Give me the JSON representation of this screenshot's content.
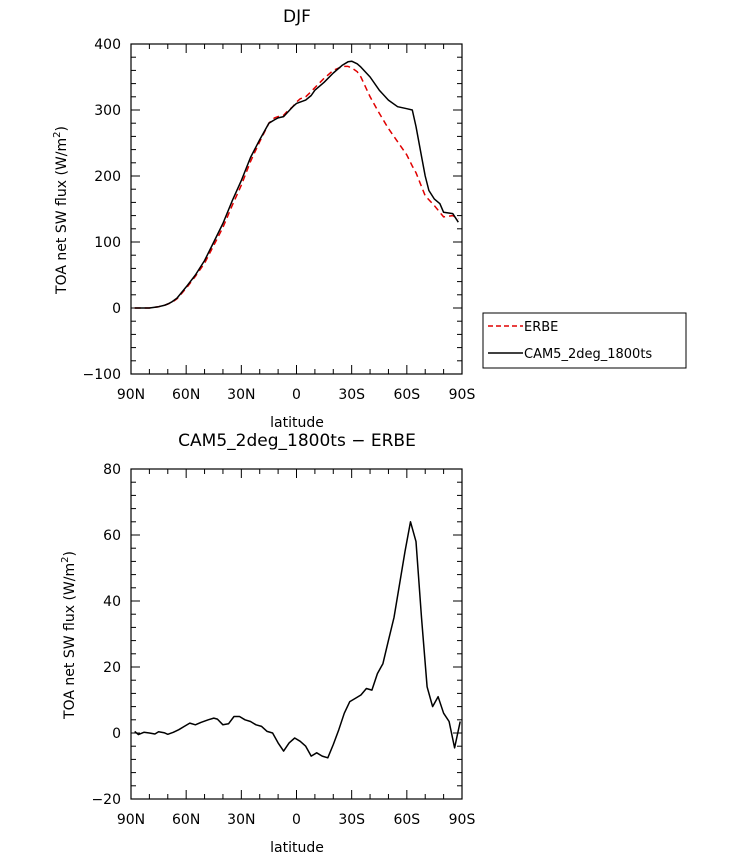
{
  "chart_data": [
    {
      "type": "line",
      "title": "DJF",
      "xlabel": "latitude",
      "ylabel": "TOA net SW flux (W/m²)",
      "ylabel_parts": {
        "main": "TOA net SW flux (W/m",
        "sup": "2",
        "close": ")"
      },
      "xlim": [
        -90,
        90
      ],
      "ylim": [
        -100,
        400
      ],
      "xticks": [
        -90,
        -60,
        -30,
        0,
        30,
        60,
        90
      ],
      "xtick_labels": [
        "90N",
        "60N",
        "30N",
        "0",
        "30S",
        "60S",
        "90S"
      ],
      "yticks": [
        -100,
        0,
        100,
        200,
        300,
        400
      ],
      "ytick_labels": [
        "−100",
        "0",
        "100",
        "200",
        "300",
        "400"
      ],
      "legend": "right",
      "series": [
        {
          "name": "ERBE",
          "color": "#e00000",
          "dash": "dashed",
          "x": [
            -88,
            -85,
            -80,
            -75,
            -72,
            -70,
            -68,
            -65,
            -60,
            -55,
            -50,
            -45,
            -40,
            -35,
            -30,
            -25,
            -20,
            -15,
            -12,
            -10,
            -7,
            -5,
            -2,
            0,
            2,
            5,
            8,
            10,
            15,
            20,
            25,
            28,
            30,
            33,
            35,
            40,
            45,
            50,
            55,
            60,
            63,
            65,
            70,
            75,
            80,
            85,
            88
          ],
          "y": [
            0,
            0,
            0,
            2,
            4,
            6,
            8,
            14,
            30,
            48,
            68,
            95,
            122,
            155,
            186,
            222,
            252,
            280,
            288,
            290,
            292,
            298,
            305,
            312,
            317,
            320,
            328,
            334,
            348,
            360,
            366,
            366,
            364,
            358,
            350,
            320,
            295,
            272,
            252,
            232,
            215,
            205,
            170,
            155,
            138,
            140,
            135
          ]
        },
        {
          "name": "CAM5_2deg_1800ts",
          "color": "#000000",
          "dash": "solid",
          "x": [
            -88,
            -85,
            -80,
            -75,
            -72,
            -70,
            -68,
            -65,
            -60,
            -55,
            -50,
            -45,
            -40,
            -35,
            -30,
            -25,
            -20,
            -15,
            -12,
            -10,
            -7,
            -5,
            -2,
            0,
            2,
            5,
            8,
            10,
            15,
            20,
            25,
            28,
            30,
            33,
            35,
            40,
            45,
            50,
            55,
            60,
            63,
            65,
            68,
            70,
            72,
            75,
            78,
            80,
            85,
            88
          ],
          "y": [
            0,
            0,
            0,
            2,
            4,
            6,
            9,
            15,
            32,
            50,
            72,
            100,
            128,
            162,
            193,
            228,
            255,
            280,
            285,
            288,
            290,
            296,
            305,
            310,
            312,
            315,
            322,
            330,
            342,
            356,
            368,
            373,
            374,
            370,
            365,
            350,
            330,
            315,
            305,
            302,
            300,
            275,
            230,
            200,
            178,
            165,
            158,
            145,
            143,
            130
          ]
        }
      ]
    },
    {
      "type": "line",
      "title": "CAM5_2deg_1800ts − ERBE",
      "xlabel": "latitude",
      "ylabel": "TOA net SW flux (W/m²)",
      "ylabel_parts": {
        "main": "TOA net SW flux (W/m",
        "sup": "2",
        "close": ")"
      },
      "xlim": [
        -90,
        90
      ],
      "ylim": [
        -20,
        80
      ],
      "xticks": [
        -90,
        -60,
        -30,
        0,
        30,
        60,
        90
      ],
      "xtick_labels": [
        "90N",
        "60N",
        "30N",
        "0",
        "30S",
        "60S",
        "90S"
      ],
      "yticks": [
        -20,
        0,
        20,
        40,
        60,
        80
      ],
      "ytick_labels": [
        "−20",
        "0",
        "20",
        "40",
        "60",
        "80"
      ],
      "series": [
        {
          "name": "CAM5_2deg_1800ts − ERBE",
          "color": "#000000",
          "dash": "solid",
          "x": [
            -88,
            -86,
            -83,
            -80,
            -77,
            -75,
            -72,
            -70,
            -67,
            -64,
            -61,
            -58,
            -55,
            -52,
            -48,
            -45,
            -43,
            -40,
            -37,
            -34,
            -31,
            -28,
            -25,
            -22,
            -19,
            -16,
            -13,
            -10,
            -7,
            -4,
            -1,
            2,
            5,
            8,
            11,
            14,
            17,
            20,
            23,
            26,
            29,
            32,
            35,
            38,
            41,
            44,
            47,
            50,
            53,
            56,
            59,
            62,
            65,
            68,
            71,
            74,
            77,
            80,
            83,
            86,
            89
          ],
          "y": [
            0.5,
            -0.5,
            0.2,
            0,
            -0.3,
            0.4,
            0.1,
            -0.4,
            0.2,
            1.0,
            2.0,
            3.0,
            2.5,
            3.2,
            4.0,
            4.5,
            4.2,
            2.5,
            2.8,
            5.0,
            5.0,
            4.0,
            3.5,
            2.5,
            2.0,
            0.5,
            0,
            -3.0,
            -5.5,
            -3.0,
            -1.5,
            -2.5,
            -4.0,
            -7.0,
            -6.0,
            -7.0,
            -7.5,
            -3.5,
            1.0,
            6.0,
            9.5,
            10.5,
            11.5,
            13.5,
            13.0,
            18.0,
            21.0,
            28.0,
            35.0,
            45.0,
            55.0,
            64.0,
            58.0,
            35.0,
            14.0,
            8.0,
            11.0,
            6.0,
            3.5,
            -4.5,
            3.5
          ]
        }
      ]
    }
  ]
}
